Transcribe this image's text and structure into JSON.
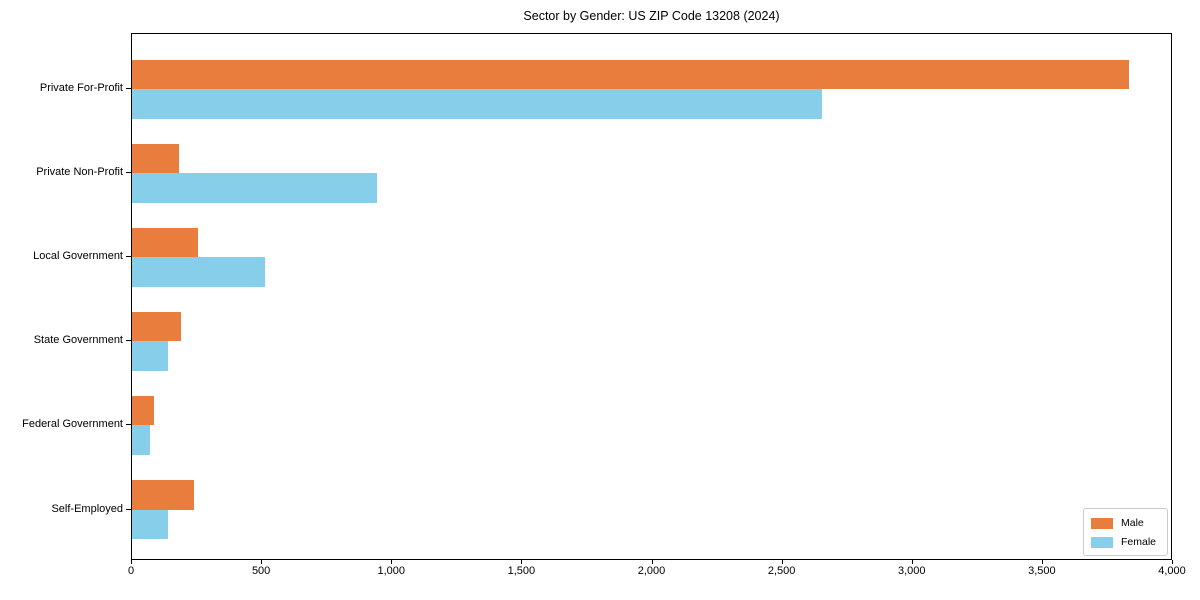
{
  "chart_data": {
    "type": "bar",
    "orientation": "horizontal",
    "title": "Sector by Gender: US ZIP Code 13208 (2024)",
    "categories": [
      "Private For-Profit",
      "Private Non-Profit",
      "Local Government",
      "State Government",
      "Federal Government",
      "Self-Employed"
    ],
    "series": [
      {
        "name": "Male",
        "color": "#E87D3E",
        "values": [
          3830,
          180,
          255,
          190,
          85,
          240
        ]
      },
      {
        "name": "Female",
        "color": "#87CEEB",
        "values": [
          2650,
          940,
          510,
          140,
          70,
          140
        ]
      }
    ],
    "xlabel": "",
    "ylabel": "",
    "xlim": [
      0,
      4000
    ],
    "xticks": [
      0,
      500,
      1000,
      1500,
      2000,
      2500,
      3000,
      3500,
      4000
    ],
    "xtick_labels": [
      "0",
      "500",
      "1,000",
      "1,500",
      "2,000",
      "2,500",
      "3,000",
      "3,500",
      "4,000"
    ],
    "grid": false,
    "legend": {
      "position": "lower right",
      "labels": [
        "Male",
        "Female"
      ]
    },
    "colors": {
      "male": "#E87D3E",
      "female": "#87CEEB",
      "axis": "#000000",
      "background": "#ffffff",
      "legend_border": "#cccccc"
    }
  }
}
